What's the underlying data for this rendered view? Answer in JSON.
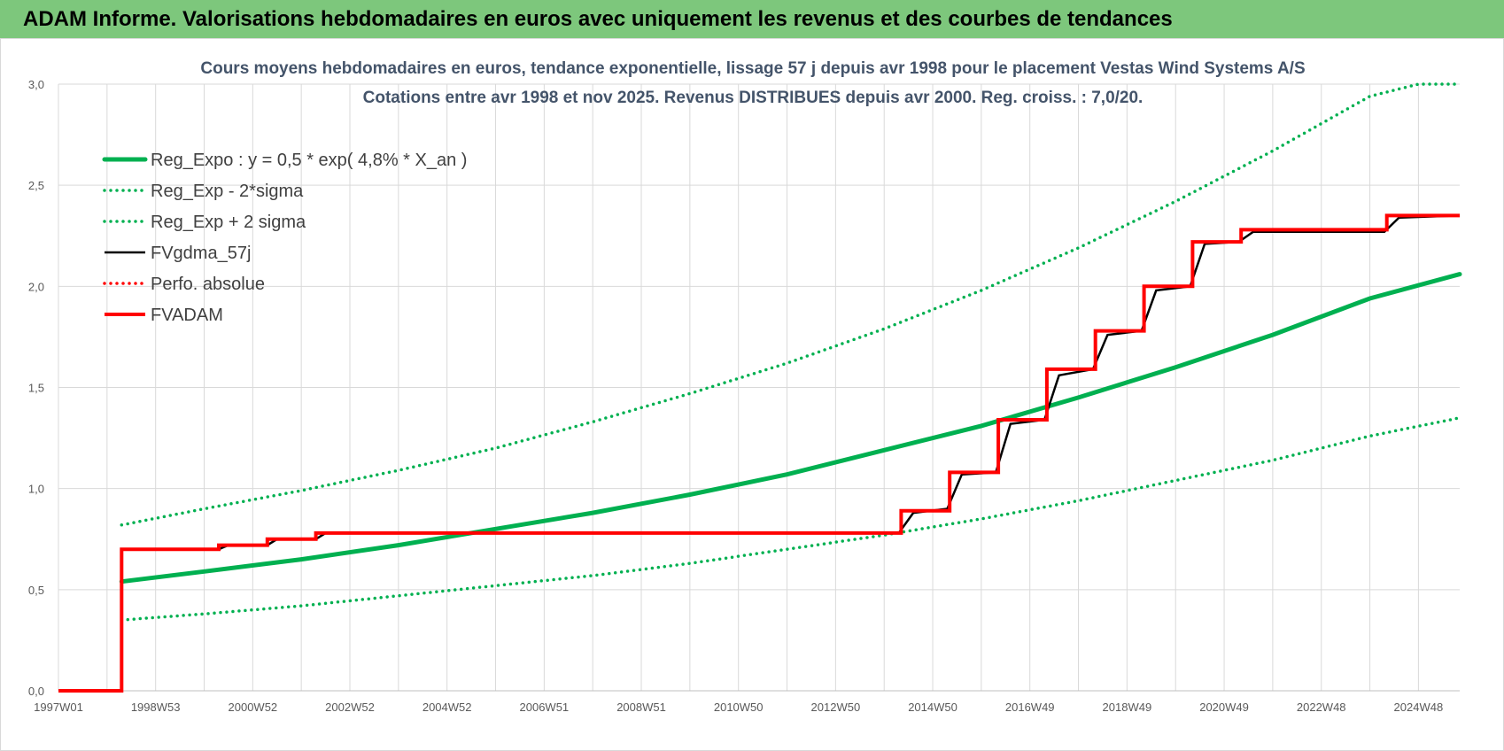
{
  "banner": {
    "title": "ADAM Informe. Valorisations hebdomadaires en euros avec uniquement les revenus et des courbes de tendances"
  },
  "colors": {
    "banner_bg": "#7dc77c",
    "reg_green": "#00b050",
    "series_black": "#000000",
    "series_red": "#ff0000",
    "title_text": "#44546a",
    "grid": "#d9d9d9"
  },
  "chart_data": {
    "type": "line",
    "title": "Cours moyens hebdomadaires en euros, tendance exponentielle, lissage 57 j depuis avr 1998 pour le placement Vestas Wind Systems A/S",
    "subtitle": "Cotations entre avr 1998 et nov 2025. Revenus DISTRIBUES depuis avr 2000. Reg. croiss. : 7,0/20.",
    "xlabel": "",
    "ylabel": "",
    "x_range": [
      1997.0,
      2025.85
    ],
    "ylim": [
      0,
      3.0
    ],
    "y_ticks": [
      0,
      0.5,
      1.0,
      1.5,
      2.0,
      2.5,
      3.0
    ],
    "y_tick_labels": [
      "0,0",
      "0,5",
      "1,0",
      "1,5",
      "2,0",
      "2,5",
      "3,0"
    ],
    "x_ticks": [
      1997.0,
      1999.0,
      2001.0,
      2003.0,
      2005.0,
      2007.0,
      2009.0,
      2011.0,
      2013.0,
      2015.0,
      2017.0,
      2019.0,
      2021.0,
      2023.0,
      2025.0
    ],
    "x_tick_labels": [
      "1997W01",
      "1998W53",
      "2000W52",
      "2002W52",
      "2004W52",
      "2006W51",
      "2008W51",
      "2010W50",
      "2012W50",
      "2014W50",
      "2016W49",
      "2018W49",
      "2020W49",
      "2022W48",
      "2024W48"
    ],
    "grid": true,
    "legend_position": "top-left",
    "series": [
      {
        "name": "Reg_Expo : y = 0,5 * exp( 4,8% *  X_an )",
        "style": "solid-thick",
        "color": "#00b050",
        "x": [
          1998.3,
          2000,
          2002,
          2004,
          2006,
          2008,
          2010,
          2012,
          2014,
          2016,
          2018,
          2020,
          2022,
          2024,
          2025.85
        ],
        "values": [
          0.54,
          0.59,
          0.65,
          0.72,
          0.8,
          0.88,
          0.97,
          1.07,
          1.19,
          1.31,
          1.45,
          1.6,
          1.76,
          1.94,
          2.06
        ]
      },
      {
        "name": "Reg_Exp - 2*sigma",
        "style": "dotted",
        "color": "#00b050",
        "x": [
          1998.3,
          2000,
          2002,
          2004,
          2006,
          2008,
          2010,
          2012,
          2014,
          2016,
          2018,
          2020,
          2022,
          2024,
          2025.85
        ],
        "values": [
          0.35,
          0.38,
          0.42,
          0.47,
          0.52,
          0.57,
          0.63,
          0.7,
          0.77,
          0.85,
          0.94,
          1.04,
          1.14,
          1.26,
          1.35
        ]
      },
      {
        "name": "Reg_Exp + 2 sigma",
        "style": "dotted",
        "color": "#00b050",
        "x": [
          1998.3,
          2000,
          2002,
          2004,
          2006,
          2008,
          2010,
          2012,
          2014,
          2016,
          2018,
          2020,
          2022,
          2024,
          2025.0,
          2025.85
        ],
        "values": [
          0.82,
          0.9,
          0.99,
          1.09,
          1.2,
          1.33,
          1.47,
          1.62,
          1.79,
          1.98,
          2.19,
          2.42,
          2.67,
          2.94,
          3.0,
          3.0
        ]
      },
      {
        "name": "FVgdma_57j",
        "style": "solid",
        "color": "#000000",
        "x": [
          1997.0,
          1998.3,
          1998.3,
          2000.3,
          2000.5,
          2001.3,
          2001.5,
          2002.3,
          2002.5,
          2014.3,
          2014.6,
          2015.3,
          2015.6,
          2016.3,
          2016.6,
          2017.3,
          2017.6,
          2018.3,
          2018.6,
          2019.3,
          2019.6,
          2020.3,
          2020.6,
          2021.3,
          2021.6,
          2024.3,
          2024.6,
          2025.85
        ],
        "values": [
          0.0,
          0.0,
          0.7,
          0.7,
          0.72,
          0.72,
          0.75,
          0.75,
          0.78,
          0.78,
          0.88,
          0.9,
          1.07,
          1.08,
          1.32,
          1.34,
          1.56,
          1.59,
          1.76,
          1.78,
          1.98,
          2.0,
          2.21,
          2.22,
          2.27,
          2.27,
          2.34,
          2.35
        ]
      },
      {
        "name": "Perfo. absolue",
        "style": "dotted",
        "color": "#ff0000",
        "x": [],
        "values": []
      },
      {
        "name": "FVADAM",
        "style": "step-thick",
        "color": "#ff0000",
        "x": [
          1997.0,
          1998.3,
          1998.3,
          2000.3,
          2000.3,
          2001.3,
          2001.3,
          2002.3,
          2002.3,
          2014.35,
          2014.35,
          2015.35,
          2015.35,
          2016.35,
          2016.35,
          2017.35,
          2017.35,
          2018.35,
          2018.35,
          2019.35,
          2019.35,
          2020.35,
          2020.35,
          2021.35,
          2021.35,
          2024.35,
          2024.35,
          2025.85
        ],
        "values": [
          0.0,
          0.0,
          0.7,
          0.7,
          0.72,
          0.72,
          0.75,
          0.75,
          0.78,
          0.78,
          0.89,
          0.89,
          1.08,
          1.08,
          1.34,
          1.34,
          1.59,
          1.59,
          1.78,
          1.78,
          2.0,
          2.0,
          2.22,
          2.22,
          2.28,
          2.28,
          2.35,
          2.35
        ]
      }
    ]
  }
}
